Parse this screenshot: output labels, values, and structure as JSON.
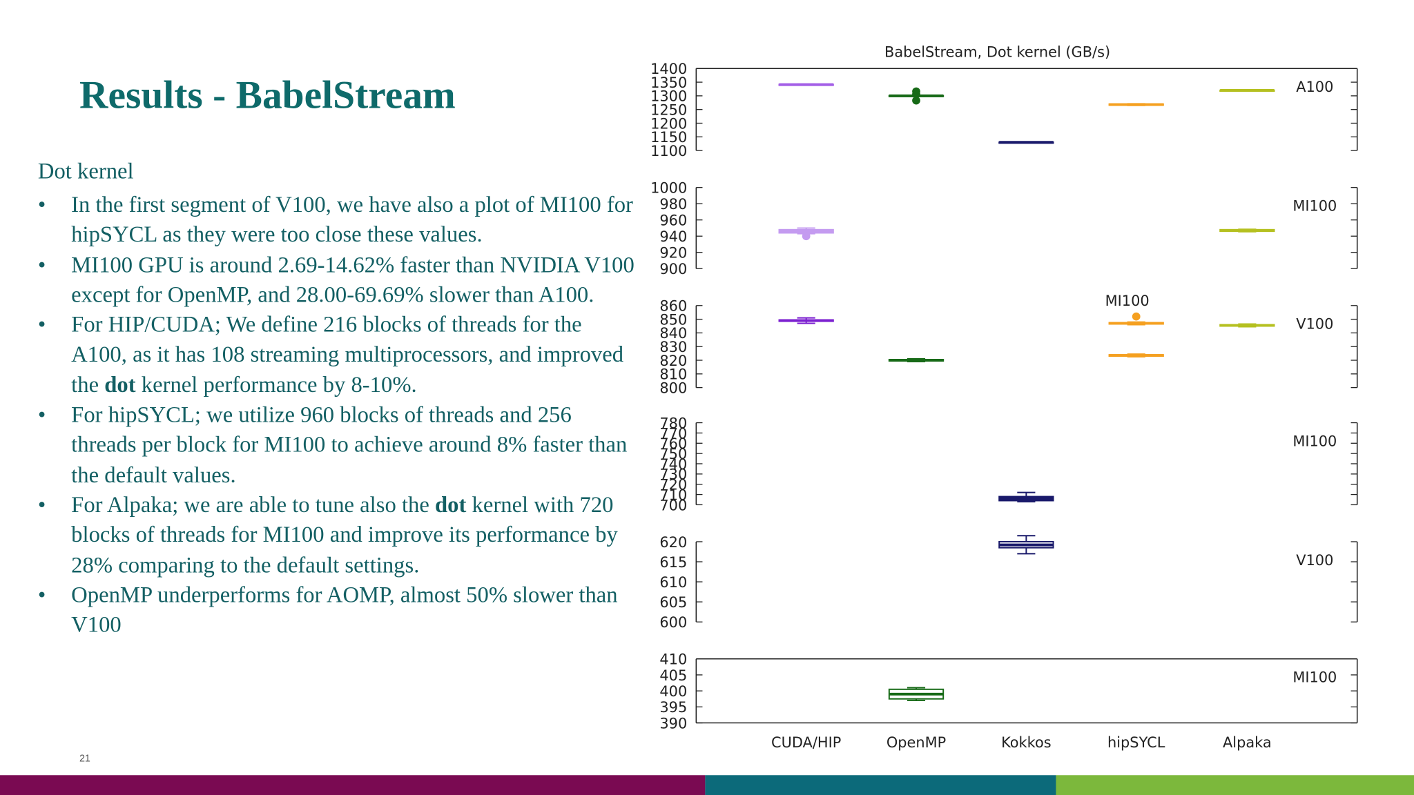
{
  "title": "Results - BabelStream",
  "section": "Dot kernel",
  "page_number": "21",
  "bullets": [
    [
      "In the first segment of V100, we have also a plot of MI100 for hipSYCL as they were too close these values."
    ],
    [
      "MI100 GPU is around 2.69-14.62% faster than NVIDIA V100 except for OpenMP, and 28.00-69.69% slower than A100."
    ],
    [
      "For HIP/CUDA; We define 216 blocks of threads for the A100, as it has 108 streaming multiprocessors, and improved the ",
      "dot",
      " kernel performance by 8-10%."
    ],
    [
      "For hipSYCL; we utilize 960 blocks of threads and 256 threads per block for MI100 to achieve around 8% faster than the default values."
    ],
    [
      "For Alpaka; we are able to tune also the ",
      "dot",
      " kernel with 720 blocks of threads for MI100 and improve its performance by 28% comparing to the default settings."
    ],
    [
      "OpenMP underperforms for AOMP, almost 50% slower than V100"
    ]
  ],
  "chart_data": {
    "type": "box",
    "title": "BabelStream, Dot kernel  (GB/s)",
    "categories": [
      "CUDA/HIP",
      "OpenMP",
      "Kokkos",
      "hipSYCL",
      "Alpaka"
    ],
    "panels": [
      {
        "label": "A100",
        "ylim": [
          1100,
          1400
        ],
        "yticks": [
          1100,
          1150,
          1200,
          1250,
          1300,
          1350,
          1400
        ],
        "boxes": [
          {
            "lo": 1339,
            "q1": 1340,
            "median": 1341,
            "q3": 1342,
            "hi": 1343,
            "color": "#a35ee6"
          },
          {
            "lo": 1298,
            "q1": 1299,
            "median": 1300,
            "q3": 1301,
            "hi": 1302,
            "color": "#176a17",
            "outliers": [
              1316,
              1306,
              1283
            ]
          },
          {
            "lo": 1129,
            "q1": 1129.5,
            "median": 1130,
            "q3": 1130.5,
            "hi": 1131,
            "color": "#1a1a6b"
          },
          {
            "lo": 1265,
            "q1": 1266,
            "median": 1268,
            "q3": 1270,
            "hi": 1271,
            "color": "#f5a020"
          },
          {
            "lo": 1319,
            "q1": 1319.5,
            "median": 1320,
            "q3": 1320.5,
            "hi": 1321,
            "color": "#b5c020"
          }
        ]
      },
      {
        "label": "MI100",
        "ylim": [
          900,
          1000
        ],
        "yticks": [
          900,
          920,
          940,
          960,
          980,
          1000
        ],
        "boxes": [
          {
            "lo": 943,
            "q1": 944,
            "median": 946,
            "q3": 948,
            "hi": 950,
            "color": "#c49bf0",
            "outliers": [
              940
            ]
          },
          null,
          null,
          null,
          {
            "lo": 945.5,
            "q1": 946,
            "median": 947,
            "q3": 948,
            "hi": 948.5,
            "color": "#b5c020"
          }
        ]
      },
      {
        "label": "V100",
        "ylim": [
          800,
          860
        ],
        "yticks": [
          800,
          810,
          820,
          830,
          840,
          850,
          860
        ],
        "boxes": [
          {
            "lo": 847,
            "q1": 848.5,
            "median": 849,
            "q3": 849.5,
            "hi": 851,
            "color": "#7b1fd0"
          },
          {
            "lo": 819,
            "q1": 819.5,
            "median": 820,
            "q3": 820.5,
            "hi": 821,
            "color": "#176a17"
          },
          null,
          {
            "lo": 822.5,
            "q1": 823,
            "median": 823.5,
            "q3": 824,
            "hi": 824.5,
            "color": "#f5a020"
          },
          {
            "lo": 844.5,
            "q1": 845,
            "median": 845.5,
            "q3": 846,
            "hi": 846.5,
            "color": "#b5c020"
          }
        ],
        "extra": {
          "label": "MI100",
          "boxes": [
            null,
            null,
            null,
            {
              "lo": 846,
              "q1": 846.5,
              "median": 847,
              "q3": 847.5,
              "hi": 848,
              "color": "#f5a020",
              "outliers": [
                852
              ]
            },
            null
          ]
        }
      },
      {
        "label": "MI100",
        "ylim": [
          700,
          780
        ],
        "yticks": [
          700,
          710,
          720,
          730,
          740,
          750,
          760,
          770,
          780
        ],
        "boxes": [
          null,
          null,
          {
            "lo": 703,
            "q1": 704,
            "median": 706,
            "q3": 708,
            "hi": 712,
            "color": "#1a1a6b"
          },
          null,
          null
        ]
      },
      {
        "label": "V100",
        "ylim": [
          600,
          620
        ],
        "yticks": [
          600,
          605,
          610,
          615,
          620
        ],
        "boxes": [
          null,
          null,
          {
            "lo": 617,
            "q1": 618.5,
            "median": 619.2,
            "q3": 620,
            "hi": 621.5,
            "color": "#1a1a6b"
          },
          null,
          null
        ]
      },
      {
        "label": "MI100",
        "ylim": [
          390,
          410
        ],
        "yticks": [
          390,
          395,
          400,
          405,
          410
        ],
        "boxes": [
          null,
          {
            "lo": 397,
            "q1": 397.5,
            "median": 399,
            "q3": 400.5,
            "hi": 401,
            "color": "#176a17"
          },
          null,
          null,
          null
        ]
      }
    ]
  }
}
